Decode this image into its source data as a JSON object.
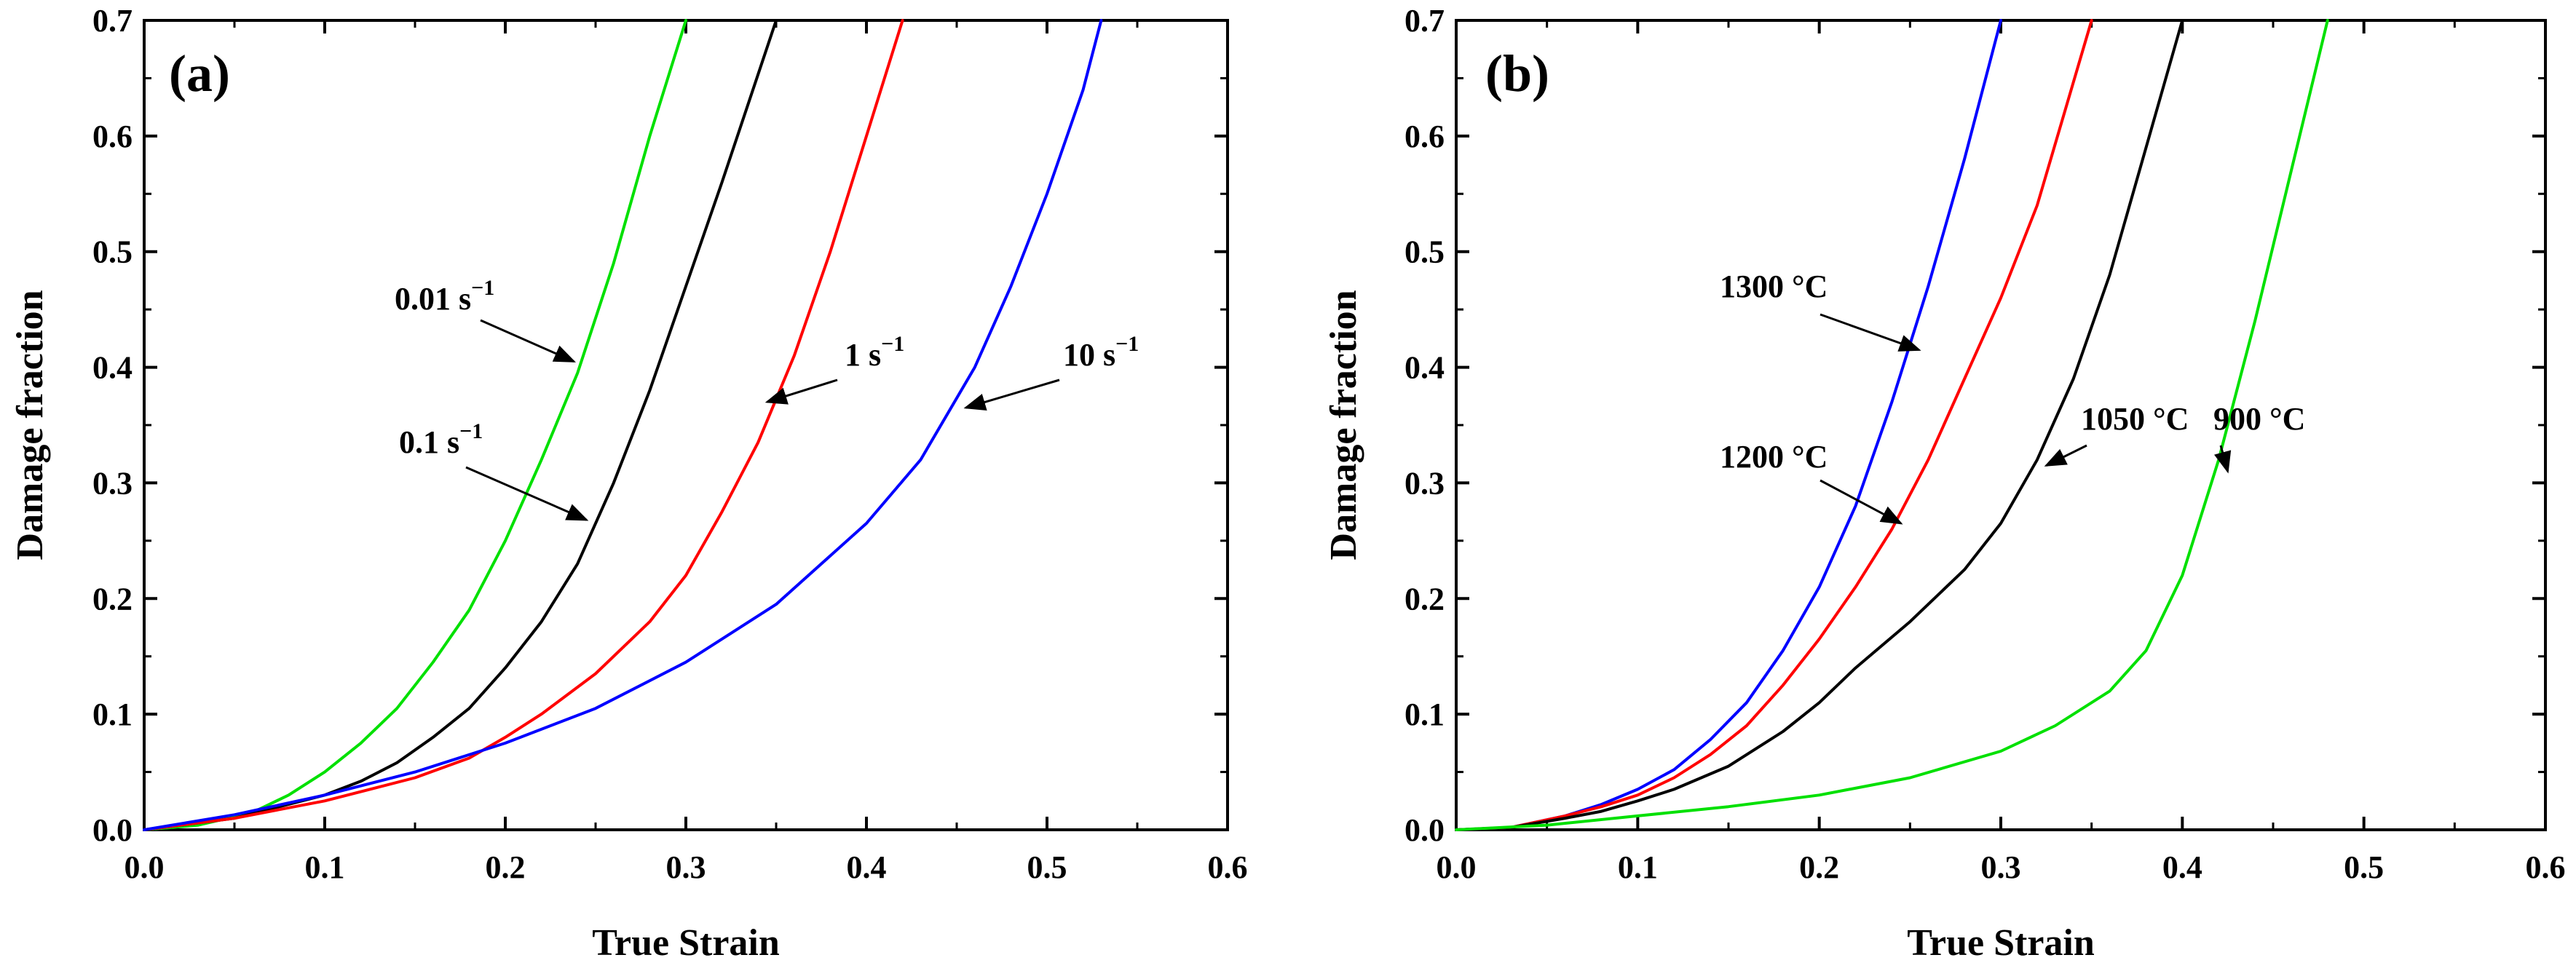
{
  "chart_data": [
    {
      "type": "line",
      "panel_label": "(a)",
      "xlabel": "True Strain",
      "ylabel": "Damage fraction",
      "xlim": [
        0.0,
        0.6
      ],
      "ylim": [
        0.0,
        0.7
      ],
      "xticks": [
        "0.0",
        "0.1",
        "0.2",
        "0.3",
        "0.4",
        "0.5",
        "0.6"
      ],
      "yticks": [
        "0.0",
        "0.1",
        "0.2",
        "0.3",
        "0.4",
        "0.5",
        "0.6",
        "0.7"
      ],
      "series": [
        {
          "name": "0.01 s-1",
          "color": "#00e000",
          "x": [
            0.0,
            0.03,
            0.06,
            0.08,
            0.1,
            0.12,
            0.14,
            0.16,
            0.18,
            0.2,
            0.22,
            0.24,
            0.26,
            0.28,
            0.3
          ],
          "y": [
            0.0,
            0.004,
            0.015,
            0.03,
            0.05,
            0.075,
            0.105,
            0.145,
            0.19,
            0.25,
            0.32,
            0.395,
            0.49,
            0.6,
            0.7
          ]
        },
        {
          "name": "0.1 s-1",
          "color": "#000000",
          "x": [
            0.0,
            0.05,
            0.1,
            0.12,
            0.14,
            0.16,
            0.18,
            0.2,
            0.22,
            0.24,
            0.26,
            0.28,
            0.3,
            0.32,
            0.35
          ],
          "y": [
            0.0,
            0.01,
            0.03,
            0.042,
            0.058,
            0.08,
            0.105,
            0.14,
            0.18,
            0.23,
            0.3,
            0.38,
            0.47,
            0.56,
            0.7
          ]
        },
        {
          "name": "1 s-1",
          "color": "#ff0000",
          "x": [
            0.0,
            0.05,
            0.1,
            0.15,
            0.18,
            0.2,
            0.22,
            0.25,
            0.28,
            0.3,
            0.32,
            0.34,
            0.36,
            0.38,
            0.4,
            0.42
          ],
          "y": [
            0.0,
            0.01,
            0.025,
            0.045,
            0.062,
            0.08,
            0.1,
            0.135,
            0.18,
            0.22,
            0.275,
            0.335,
            0.41,
            0.5,
            0.6,
            0.7
          ]
        },
        {
          "name": "10 s-1",
          "color": "#0000ff",
          "x": [
            0.0,
            0.05,
            0.1,
            0.15,
            0.2,
            0.25,
            0.3,
            0.35,
            0.4,
            0.43,
            0.46,
            0.48,
            0.5,
            0.52,
            0.53
          ],
          "y": [
            0.0,
            0.013,
            0.03,
            0.05,
            0.075,
            0.105,
            0.145,
            0.195,
            0.265,
            0.32,
            0.4,
            0.47,
            0.55,
            0.64,
            0.7
          ]
        }
      ],
      "annotations": [
        {
          "base": "0.01 s",
          "sup": "−1",
          "points_to": [
            0.238,
            0.405
          ]
        },
        {
          "base": "0.1 s",
          "sup": "−1",
          "points_to": [
            0.245,
            0.268
          ]
        },
        {
          "base": "1 s",
          "sup": "−1",
          "points_to": [
            0.345,
            0.37
          ]
        },
        {
          "base": "10 s",
          "sup": "−1",
          "points_to": [
            0.455,
            0.365
          ]
        }
      ]
    },
    {
      "type": "line",
      "panel_label": "(b)",
      "xlabel": "True Strain",
      "ylabel": "Damage fraction",
      "xlim": [
        0.0,
        0.6
      ],
      "ylim": [
        0.0,
        0.7
      ],
      "xticks": [
        "0.0",
        "0.1",
        "0.2",
        "0.3",
        "0.4",
        "0.5",
        "0.6"
      ],
      "yticks": [
        "0.0",
        "0.1",
        "0.2",
        "0.3",
        "0.4",
        "0.5",
        "0.6",
        "0.7"
      ],
      "series": [
        {
          "name": "1300 °C",
          "color": "#0000ff",
          "x": [
            0.0,
            0.03,
            0.06,
            0.08,
            0.1,
            0.12,
            0.14,
            0.16,
            0.18,
            0.2,
            0.22,
            0.24,
            0.26,
            0.28,
            0.3
          ],
          "y": [
            0.0,
            0.002,
            0.012,
            0.022,
            0.035,
            0.052,
            0.078,
            0.11,
            0.155,
            0.21,
            0.28,
            0.37,
            0.47,
            0.58,
            0.7
          ]
        },
        {
          "name": "1200 °C",
          "color": "#ff0000",
          "x": [
            0.0,
            0.03,
            0.06,
            0.08,
            0.1,
            0.12,
            0.14,
            0.16,
            0.18,
            0.2,
            0.22,
            0.24,
            0.26,
            0.28,
            0.3,
            0.32,
            0.35
          ],
          "y": [
            0.0,
            0.002,
            0.012,
            0.02,
            0.03,
            0.045,
            0.065,
            0.09,
            0.125,
            0.165,
            0.21,
            0.26,
            0.32,
            0.39,
            0.46,
            0.54,
            0.7
          ]
        },
        {
          "name": "1050 °C",
          "color": "#000000",
          "x": [
            0.0,
            0.03,
            0.06,
            0.08,
            0.1,
            0.12,
            0.15,
            0.18,
            0.2,
            0.22,
            0.25,
            0.28,
            0.3,
            0.32,
            0.34,
            0.36,
            0.38,
            0.4
          ],
          "y": [
            0.0,
            0.002,
            0.01,
            0.016,
            0.025,
            0.035,
            0.055,
            0.085,
            0.11,
            0.14,
            0.18,
            0.225,
            0.265,
            0.32,
            0.39,
            0.48,
            0.59,
            0.7
          ]
        },
        {
          "name": "900 °C",
          "color": "#00e000",
          "x": [
            0.0,
            0.05,
            0.1,
            0.15,
            0.2,
            0.25,
            0.3,
            0.33,
            0.36,
            0.38,
            0.4,
            0.42,
            0.44,
            0.46,
            0.48
          ],
          "y": [
            0.0,
            0.004,
            0.012,
            0.02,
            0.03,
            0.045,
            0.068,
            0.09,
            0.12,
            0.155,
            0.22,
            0.32,
            0.44,
            0.57,
            0.7
          ]
        }
      ],
      "annotations": [
        {
          "base": "1300 °C",
          "sup": "",
          "points_to": [
            0.255,
            0.415
          ]
        },
        {
          "base": "1200 °C",
          "sup": "",
          "points_to": [
            0.245,
            0.265
          ]
        },
        {
          "base": "1050 °C",
          "sup": "",
          "points_to": [
            0.325,
            0.315
          ]
        },
        {
          "base": "900 °C",
          "sup": "",
          "points_to": [
            0.425,
            0.31
          ]
        }
      ]
    }
  ]
}
